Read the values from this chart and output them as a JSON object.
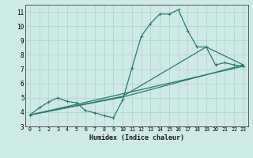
{
  "xlabel": "Humidex (Indice chaleur)",
  "bg_color": "#ceeae6",
  "grid_color": "#b8d8d4",
  "line_color": "#2a7a70",
  "xlim": [
    -0.5,
    23.5
  ],
  "ylim": [
    3.0,
    11.5
  ],
  "yticks": [
    3,
    4,
    5,
    6,
    7,
    8,
    9,
    10,
    11
  ],
  "xticks": [
    0,
    1,
    2,
    3,
    4,
    5,
    6,
    7,
    8,
    9,
    10,
    11,
    12,
    13,
    14,
    15,
    16,
    17,
    18,
    19,
    20,
    21,
    22,
    23
  ],
  "xtick_labels": [
    "0",
    "1",
    "2",
    "3",
    "4",
    "5",
    "6",
    "7",
    "8",
    "9",
    "10",
    "11",
    "12",
    "13",
    "14",
    "15",
    "16",
    "17",
    "18",
    "19",
    "20",
    "21",
    "22",
    "23"
  ],
  "series1_x": [
    0,
    1,
    2,
    3,
    4,
    5,
    6,
    7,
    8,
    9,
    10,
    11,
    12,
    13,
    14,
    15,
    16,
    17,
    18,
    19,
    20,
    21,
    22,
    23
  ],
  "series1_y": [
    3.8,
    4.3,
    4.7,
    5.0,
    4.75,
    4.65,
    4.1,
    3.95,
    3.75,
    3.6,
    4.85,
    7.1,
    9.3,
    10.2,
    10.85,
    10.85,
    11.15,
    9.7,
    8.55,
    8.55,
    7.3,
    7.45,
    7.3,
    7.2
  ],
  "series2_x": [
    0,
    23
  ],
  "series2_y": [
    3.8,
    7.2
  ],
  "series3_x": [
    0,
    10,
    23
  ],
  "series3_y": [
    3.8,
    5.05,
    7.3
  ],
  "series4_x": [
    0,
    10,
    19,
    23
  ],
  "series4_y": [
    3.8,
    5.1,
    8.55,
    7.3
  ]
}
